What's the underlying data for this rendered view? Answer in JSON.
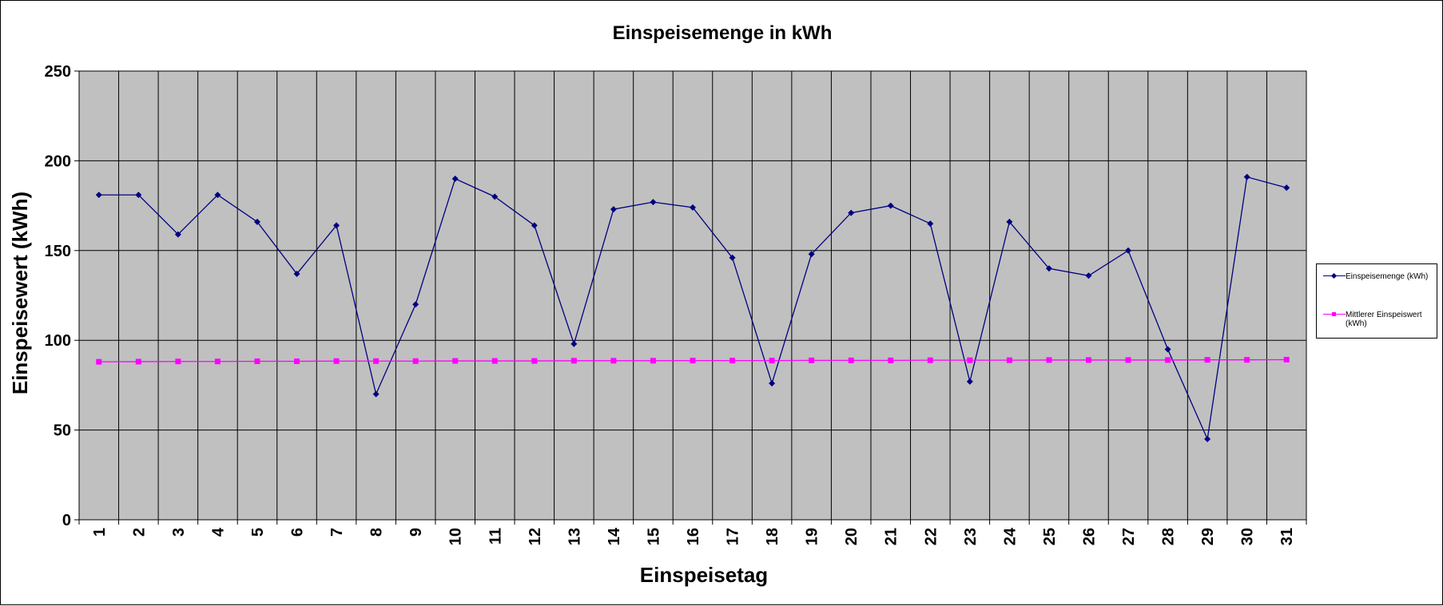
{
  "chart_data": {
    "type": "line",
    "title": "Einspeisemenge in kWh",
    "xlabel": "Einspeisetag",
    "ylabel": "Einspeisewert  (kWh)",
    "categories": [
      "1",
      "2",
      "3",
      "4",
      "5",
      "6",
      "7",
      "8",
      "9",
      "10",
      "11",
      "12",
      "13",
      "14",
      "15",
      "16",
      "17",
      "18",
      "19",
      "20",
      "21",
      "22",
      "23",
      "24",
      "25",
      "26",
      "27",
      "28",
      "29",
      "30",
      "31"
    ],
    "ylim": [
      0,
      250
    ],
    "yticks": [
      "0",
      "50",
      "100",
      "150",
      "200",
      "250"
    ],
    "grid": true,
    "legend_position": "right",
    "plot_background": "#C0C0C0",
    "series": [
      {
        "name": "Einspeisemenge (kWh)",
        "color": "#000080",
        "marker": "diamond",
        "values": [
          181,
          181,
          159,
          181,
          166,
          137,
          164,
          70,
          120,
          190,
          180,
          164,
          98,
          173,
          177,
          174,
          146,
          76,
          148,
          171,
          175,
          165,
          77,
          166,
          140,
          136,
          150,
          95,
          45,
          191,
          185
        ]
      },
      {
        "name": "Mittlerer Einspeiswert (kWh)",
        "color": "#FF00FF",
        "marker": "square",
        "values": [
          88,
          88.1,
          88.2,
          88.2,
          88.3,
          88.3,
          88.4,
          88.4,
          88.4,
          88.5,
          88.5,
          88.5,
          88.6,
          88.6,
          88.6,
          88.7,
          88.7,
          88.7,
          88.8,
          88.8,
          88.8,
          88.9,
          88.9,
          88.9,
          89,
          89,
          89,
          89,
          89.1,
          89.1,
          89.2
        ]
      }
    ]
  }
}
